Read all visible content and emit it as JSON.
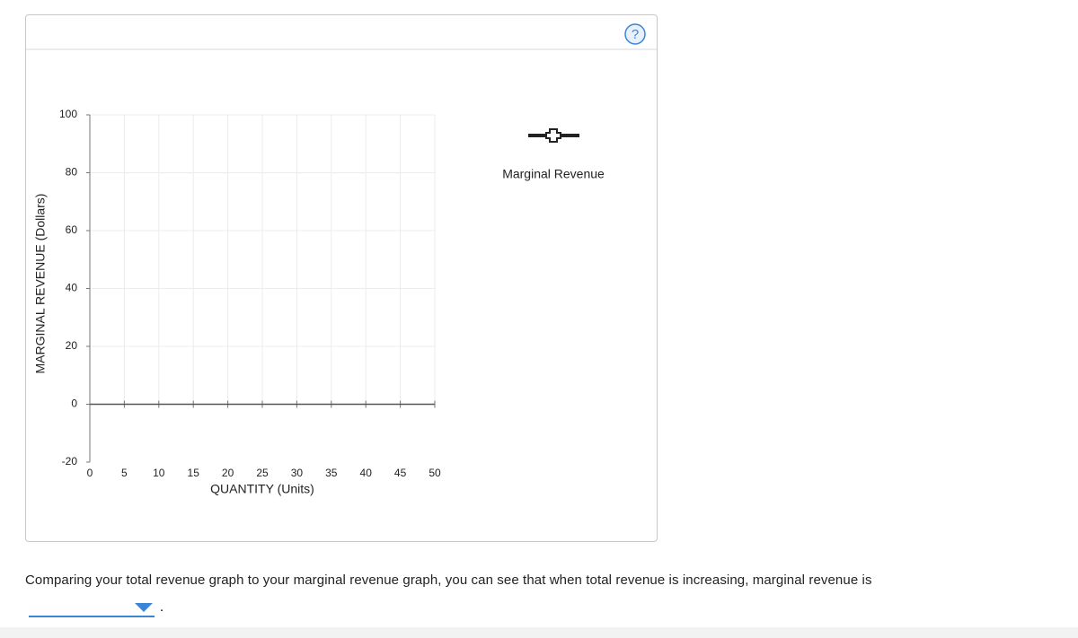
{
  "chart_data": {
    "type": "line",
    "y_label": "MARGINAL REVENUE (Dollars)",
    "x_label": "QUANTITY (Units)",
    "x": [],
    "series": [
      {
        "name": "Marginal Revenue",
        "color": "#222222",
        "values": []
      }
    ],
    "xlim": [
      0,
      50
    ],
    "xticks": [
      0,
      5,
      10,
      15,
      20,
      25,
      30,
      35,
      40,
      45,
      50
    ],
    "ylim": [
      -20,
      100
    ],
    "yticks": [
      -20,
      0,
      20,
      40,
      60,
      80,
      100
    ],
    "grid": true
  },
  "help": "?",
  "question": {
    "text": "Comparing your total revenue graph to your marginal revenue graph, you can see that when total revenue is increasing, marginal revenue is",
    "suffix": "."
  }
}
